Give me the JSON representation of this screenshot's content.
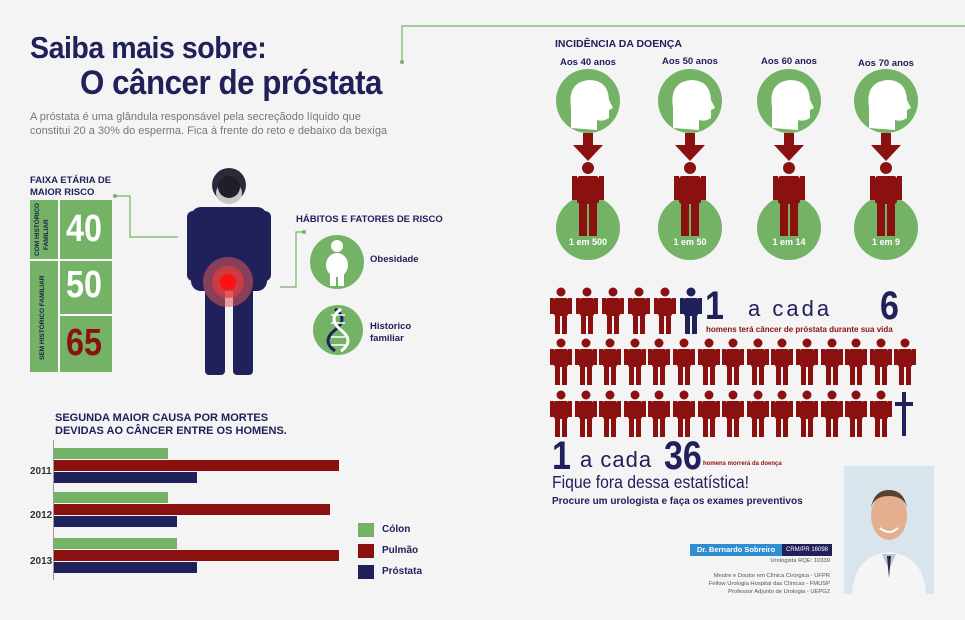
{
  "header": {
    "title_line1": "Saiba mais sobre:",
    "title_line2": "O câncer de próstata",
    "intro": "A próstata é uma glândula responsável pela secreçãodo líquido que constitui 20 a 30% do esperma. Fica à frente do reto e debaixo da bexiga"
  },
  "age_risk": {
    "label_line1": "FAIXA ETÁRIA DE",
    "label_line2": "MAIOR RISCO",
    "with_history_label_1": "COM HISTÓRICO",
    "with_history_label_2": "FAMILIAR",
    "without_history_label": "SEM HISTÓRICO FAMILIAR",
    "values": [
      "40",
      "50",
      "65"
    ]
  },
  "risk_factors": {
    "title": "HÁBITOS E FATORES DE RISCO",
    "items": [
      {
        "label": "Obesidade",
        "icon": "obese-person-icon"
      },
      {
        "label_line1": "Historico",
        "label_line2": "familiar",
        "icon": "dna-icon"
      }
    ]
  },
  "chart_data": {
    "type": "bar",
    "orientation": "horizontal",
    "title": "SEGUNDA MAIOR CAUSA POR MORTES DEVIDAS AO CÂNCER ENTRE OS HOMENS.",
    "title_line1": "SEGUNDA MAIOR CAUSA POR MORTES",
    "title_line2": "DEVIDAS AO CÂNCER ENTRE OS HOMENS.",
    "categories": [
      "2011",
      "2012",
      "2013"
    ],
    "series": [
      {
        "name": "Cólon",
        "color": "#74b365",
        "values": [
          40,
          40,
          43
        ]
      },
      {
        "name": "Pulmão",
        "color": "#8b1111",
        "values": [
          100,
          97,
          100
        ]
      },
      {
        "name": "Próstata",
        "color": "#20205a",
        "values": [
          50,
          43,
          50
        ]
      }
    ],
    "xlim": [
      0,
      100
    ],
    "legend": "bottom-right"
  },
  "incidence": {
    "title": "INCIDÊNCIA DA DOENÇA",
    "groups": [
      {
        "age": "Aos 40 anos",
        "ratio": "1 em 500"
      },
      {
        "age": "Aos 50 anos",
        "ratio": "1 em 50"
      },
      {
        "age": "Aos 60 anos",
        "ratio": "1 em 14"
      },
      {
        "age": "Aos 70 anos",
        "ratio": "1 em 9"
      }
    ]
  },
  "stats": {
    "one": "1",
    "a_cada": "a cada",
    "six": "6",
    "six_caption": "homens terá câncer de próstata durante sua vida",
    "one_b": "1",
    "a_cada_b": "a cada",
    "thirty_six": "36",
    "thirty_six_caption": "homens morrerá da doença",
    "fique": "Fique fora dessa estatística!",
    "procure": "Procure um urologista e faça os exames preventivos"
  },
  "doctor": {
    "name": "Dr. Bernardo Sobreiro",
    "crm": "CRM/PR 16098",
    "rqe": "Urologista RQE: 10339",
    "line1": "Mestre e Doutor em Clínica Cirúrgica - UFPR",
    "line2": "Fellow Urologia Hospital das Clínicas - FMUSP",
    "line3": "Professor Adjunto de Urologia - UEPG2"
  },
  "colors": {
    "navy": "#20205a",
    "green": "#74b365",
    "dark_red": "#8b1111",
    "blue": "#2e8fd0"
  }
}
